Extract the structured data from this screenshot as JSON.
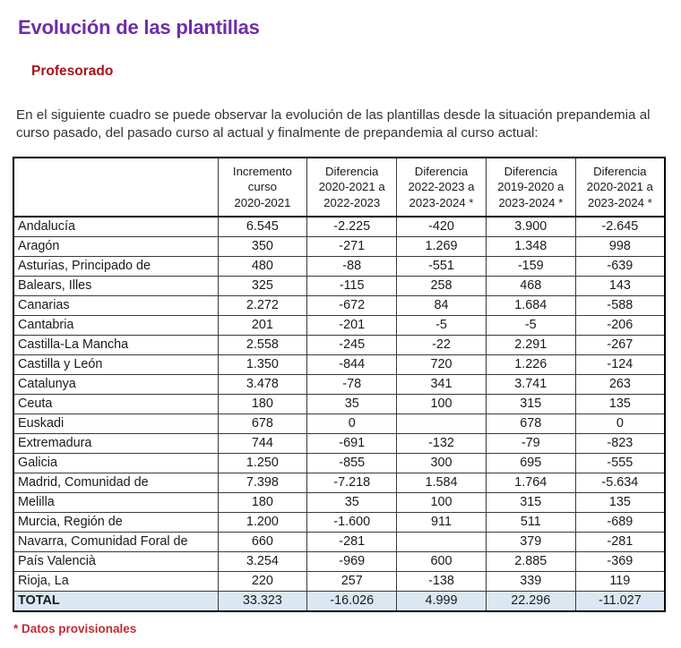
{
  "page": {
    "title": "Evolución de las plantillas",
    "subtitle": "Profesorado",
    "intro": "En el siguiente cuadro se puede observar la evolución de las plantillas desde la situación prepandemia al curso pasado, del pasado curso al actual y finalmente de prepandemia al curso actual:",
    "footnote": "* Datos provisionales"
  },
  "colors": {
    "title": "#6f2da8",
    "subtitle": "#a6131c",
    "footnote": "#c22b31",
    "total_row_bg": "#dbe8f4"
  },
  "table": {
    "headers": [
      "",
      "Incremento\ncurso\n2020-2021",
      "Diferencia\n2020-2021 a\n2022-2023",
      "Diferencia\n2022-2023 a\n2023-2024 *",
      "Diferencia\n2019-2020 a\n2023-2024 *",
      "Diferencia\n2020-2021 a\n2023-2024 *"
    ],
    "rows": [
      {
        "name": "Andalucía",
        "values": [
          "6.545",
          "-2.225",
          "-420",
          "3.900",
          "-2.645"
        ]
      },
      {
        "name": "Aragón",
        "values": [
          "350",
          "-271",
          "1.269",
          "1.348",
          "998"
        ]
      },
      {
        "name": "Asturias, Principado de",
        "values": [
          "480",
          "-88",
          "-551",
          "-159",
          "-639"
        ]
      },
      {
        "name": "Balears, Illes",
        "values": [
          "325",
          "-115",
          "258",
          "468",
          "143"
        ]
      },
      {
        "name": "Canarias",
        "values": [
          "2.272",
          "-672",
          "84",
          "1.684",
          "-588"
        ]
      },
      {
        "name": "Cantabria",
        "values": [
          "201",
          "-201",
          "-5",
          "-5",
          "-206"
        ]
      },
      {
        "name": "Castilla-La Mancha",
        "values": [
          "2.558",
          "-245",
          "-22",
          "2.291",
          "-267"
        ]
      },
      {
        "name": "Castilla y León",
        "values": [
          "1.350",
          "-844",
          "720",
          "1.226",
          "-124"
        ]
      },
      {
        "name": "Catalunya",
        "values": [
          "3.478",
          "-78",
          "341",
          "3.741",
          "263"
        ]
      },
      {
        "name": "Ceuta",
        "values": [
          "180",
          "35",
          "100",
          "315",
          "135"
        ]
      },
      {
        "name": "Euskadi",
        "values": [
          "678",
          "0",
          "",
          "678",
          "0"
        ]
      },
      {
        "name": "Extremadura",
        "values": [
          "744",
          "-691",
          "-132",
          "-79",
          "-823"
        ]
      },
      {
        "name": "Galicia",
        "values": [
          "1.250",
          "-855",
          "300",
          "695",
          "-555"
        ]
      },
      {
        "name": "Madrid, Comunidad de",
        "values": [
          "7.398",
          "-7.218",
          "1.584",
          "1.764",
          "-5.634"
        ]
      },
      {
        "name": "Melilla",
        "values": [
          "180",
          "35",
          "100",
          "315",
          "135"
        ]
      },
      {
        "name": "Murcia, Región de",
        "values": [
          "1.200",
          "-1.600",
          "911",
          "511",
          "-689"
        ]
      },
      {
        "name": "Navarra, Comunidad Foral de",
        "values": [
          "660",
          "-281",
          "",
          "379",
          "-281"
        ]
      },
      {
        "name": "País Valencià",
        "values": [
          "3.254",
          "-969",
          "600",
          "2.885",
          "-369"
        ]
      },
      {
        "name": "Rioja, La",
        "values": [
          "220",
          "257",
          "-138",
          "339",
          "119"
        ]
      }
    ],
    "total": {
      "name": "TOTAL",
      "values": [
        "33.323",
        "-16.026",
        "4.999",
        "22.296",
        "-11.027"
      ]
    }
  }
}
